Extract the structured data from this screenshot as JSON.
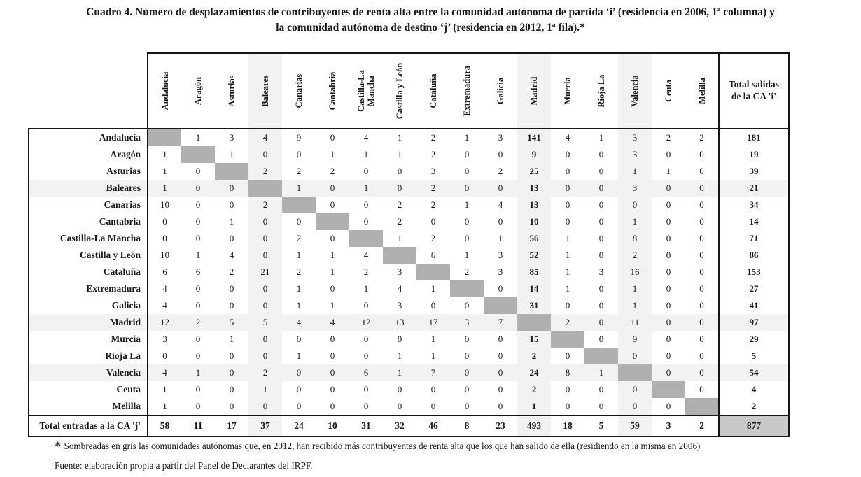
{
  "title_line1": "Cuadro 4. Número de desplazamientos de contribuyentes de renta alta entre la comunidad autónoma de partida ‘i’ (residencia en 2006, 1ª columna) y",
  "title_line2": "la comunidad autónoma de destino ‘j’ (residencia en 2012, 1ª fila).*",
  "table": {
    "column_headers": [
      "Andalucía",
      "Aragón",
      "Asturias",
      "Baleares",
      "Canarias",
      "Cantabria",
      "Castilla-La Mancha",
      "Castilla y León",
      "Cataluña",
      "Extremadura",
      "Galicia",
      "Madrid",
      "Murcia",
      "Rioja La",
      "Valencia",
      "Ceuta",
      "Melilla"
    ],
    "total_out_header": "Total salidas de la CA 'i'",
    "row_headers": [
      "Andalucía",
      "Aragón",
      "Asturias",
      "Baleares",
      "Canarias",
      "Cantabria",
      "Castilla-La Mancha",
      "Castilla y León",
      "Cataluña",
      "Extremadura",
      "Galicia",
      "Madrid",
      "Murcia",
      "Rioja La",
      "Valencia",
      "Ceuta",
      "Melilla"
    ],
    "total_in_label": "Total entradas a la CA 'j'",
    "matrix": [
      [
        null,
        1,
        3,
        4,
        9,
        0,
        4,
        1,
        2,
        1,
        3,
        141,
        4,
        1,
        3,
        2,
        2
      ],
      [
        1,
        null,
        1,
        0,
        0,
        1,
        1,
        1,
        2,
        0,
        0,
        9,
        0,
        0,
        3,
        0,
        0
      ],
      [
        1,
        0,
        null,
        2,
        2,
        2,
        0,
        0,
        3,
        0,
        2,
        25,
        0,
        0,
        1,
        1,
        0
      ],
      [
        1,
        0,
        0,
        null,
        1,
        0,
        1,
        0,
        2,
        0,
        0,
        13,
        0,
        0,
        3,
        0,
        0
      ],
      [
        10,
        0,
        0,
        2,
        null,
        0,
        0,
        2,
        2,
        1,
        4,
        13,
        0,
        0,
        0,
        0,
        0
      ],
      [
        0,
        0,
        1,
        0,
        0,
        null,
        0,
        2,
        0,
        0,
        0,
        10,
        0,
        0,
        1,
        0,
        0
      ],
      [
        0,
        0,
        0,
        0,
        2,
        0,
        null,
        1,
        2,
        0,
        1,
        56,
        1,
        0,
        8,
        0,
        0
      ],
      [
        10,
        1,
        4,
        0,
        1,
        1,
        4,
        null,
        6,
        1,
        3,
        52,
        1,
        0,
        2,
        0,
        0
      ],
      [
        6,
        6,
        2,
        21,
        2,
        1,
        2,
        3,
        null,
        2,
        3,
        85,
        1,
        3,
        16,
        0,
        0
      ],
      [
        4,
        0,
        0,
        0,
        1,
        0,
        1,
        4,
        1,
        null,
        0,
        14,
        1,
        0,
        1,
        0,
        0
      ],
      [
        4,
        0,
        0,
        0,
        1,
        1,
        0,
        3,
        0,
        0,
        null,
        31,
        0,
        0,
        1,
        0,
        0
      ],
      [
        12,
        2,
        5,
        5,
        4,
        4,
        12,
        13,
        17,
        3,
        7,
        null,
        2,
        0,
        11,
        0,
        0
      ],
      [
        3,
        0,
        1,
        0,
        0,
        0,
        0,
        0,
        1,
        0,
        0,
        15,
        null,
        0,
        9,
        0,
        0
      ],
      [
        0,
        0,
        0,
        0,
        1,
        0,
        0,
        1,
        1,
        0,
        0,
        2,
        0,
        null,
        0,
        0,
        0
      ],
      [
        4,
        1,
        0,
        2,
        0,
        0,
        6,
        1,
        7,
        0,
        0,
        24,
        8,
        1,
        null,
        0,
        0
      ],
      [
        1,
        0,
        0,
        1,
        0,
        0,
        0,
        0,
        0,
        0,
        0,
        2,
        0,
        0,
        0,
        null,
        0
      ],
      [
        1,
        0,
        0,
        0,
        0,
        0,
        0,
        0,
        0,
        0,
        0,
        1,
        0,
        0,
        0,
        0,
        null
      ]
    ],
    "row_totals": [
      181,
      19,
      39,
      21,
      34,
      14,
      71,
      86,
      153,
      27,
      41,
      97,
      29,
      5,
      54,
      4,
      2
    ],
    "col_totals": [
      58,
      11,
      17,
      37,
      24,
      10,
      31,
      32,
      46,
      8,
      23,
      493,
      18,
      5,
      59,
      3,
      2
    ],
    "grand_total": 877,
    "shaded_indices": [
      3,
      11,
      14
    ],
    "bold_column_index": 11
  },
  "footnote": {
    "marker": "*",
    "text": "Sombreadas en gris las comunidades autónomas que, en 2012, han recibido más contribuyentes de renta alta que los que han salido de ella (residiendo en la misma en 2006)"
  },
  "source": "Fuente: elaboración propia a partir del Panel de Declarantes del IRPF.",
  "colors": {
    "shade_light": "#f2f2f2",
    "diagonal": "#b0b0b0",
    "grand_total_bg": "#c8c8c8",
    "border": "#151515"
  }
}
